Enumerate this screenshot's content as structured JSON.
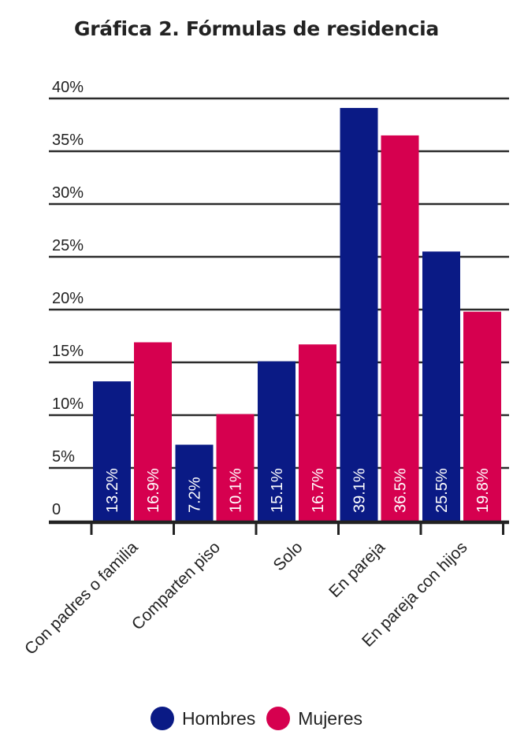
{
  "chart_data": {
    "type": "bar",
    "title": "Gráfica 2. Fórmulas de residencia",
    "categories": [
      "Con padres o familia",
      "Comparten piso",
      "Solo",
      "En pareja",
      "En pareja con hijos"
    ],
    "series": [
      {
        "name": "Hombres",
        "values": [
          13.2,
          7.2,
          15.1,
          39.1,
          25.5
        ],
        "labels": [
          "13.2%",
          "7.2%",
          "15.1%",
          "39.1%",
          "25.5%"
        ],
        "color": "#0a1a85"
      },
      {
        "name": "Mujeres",
        "values": [
          16.9,
          10.1,
          16.7,
          36.5,
          19.8
        ],
        "labels": [
          "16.9%",
          "10.1%",
          "16.7%",
          "36.5%",
          "19.8%"
        ],
        "color": "#d6004f"
      }
    ],
    "ylim": [
      0,
      40
    ],
    "yticks": [
      0,
      5,
      10,
      15,
      20,
      25,
      30,
      35,
      40
    ],
    "ytick_labels": [
      "0",
      "5%",
      "10%",
      "15%",
      "20%",
      "25%",
      "30%",
      "35%",
      "40%"
    ],
    "xlabel": "",
    "ylabel": "",
    "grid": true,
    "legend_position": "bottom"
  }
}
